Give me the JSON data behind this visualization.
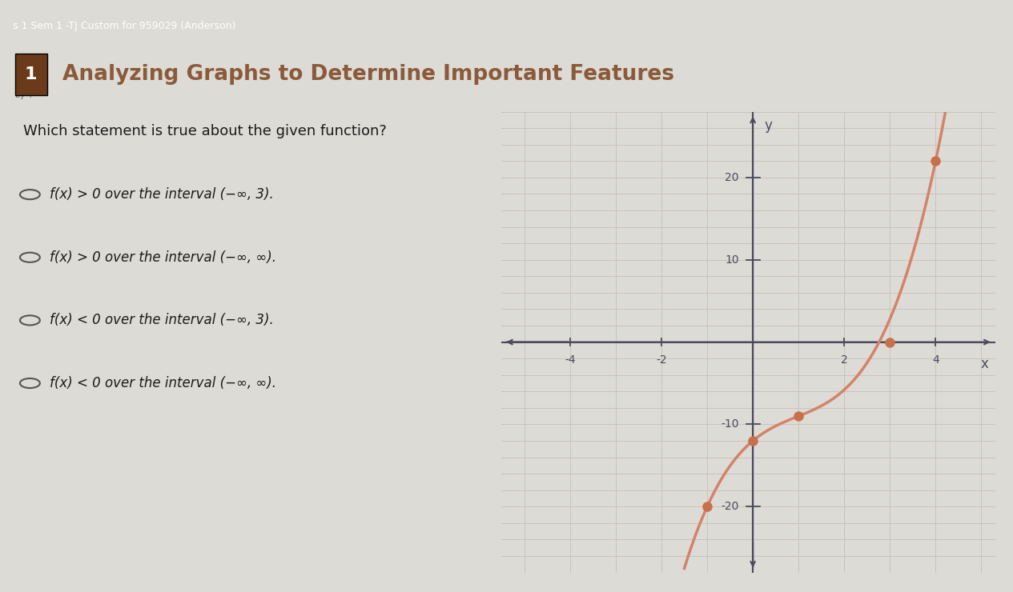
{
  "title": "Analyzing Graphs to Determine Important Features",
  "header_text": "s 1 Sem 1 -TJ Custom for 959029 (Anderson)",
  "sub_header_text": "by 4",
  "question": "Which statement is true about the given function?",
  "choices": [
    "f(x) > 0 over the interval (−∞, 3).",
    "f(x) > 0 over the interval (−∞, ∞).",
    "f(x) < 0 over the interval (−∞, 3).",
    "f(x) < 0 over the interval (−∞, ∞)."
  ],
  "top_bar_bg": "#3d5a8a",
  "title_bar_bg": "#f0eeea",
  "page_bg": "#dddbd5",
  "graph_bg": "#e0ddd6",
  "grid_color": "#c8c4bc",
  "axis_color": "#4a4a5a",
  "curve_color": "#d4826a",
  "dot_color": "#c8704a",
  "title_color": "#8b5a3a",
  "question_color": "#1a1a1a",
  "choice_color": "#1a1a1a",
  "badge_bg": "#6b3a1a",
  "badge_text": "1",
  "dot_points": [
    [
      -1,
      -20
    ],
    [
      0,
      -12
    ],
    [
      1,
      -9
    ],
    [
      3,
      0
    ],
    [
      4,
      22
    ]
  ],
  "xlim": [
    -5.5,
    5.3
  ],
  "ylim": [
    -28,
    28
  ],
  "xticks": [
    -4,
    -2,
    2,
    4
  ],
  "yticks": [
    -20,
    -10,
    10,
    20
  ],
  "curve_a": 0.8667,
  "curve_b": -2.5,
  "curve_c": 4.6333,
  "curve_d": -12.0
}
